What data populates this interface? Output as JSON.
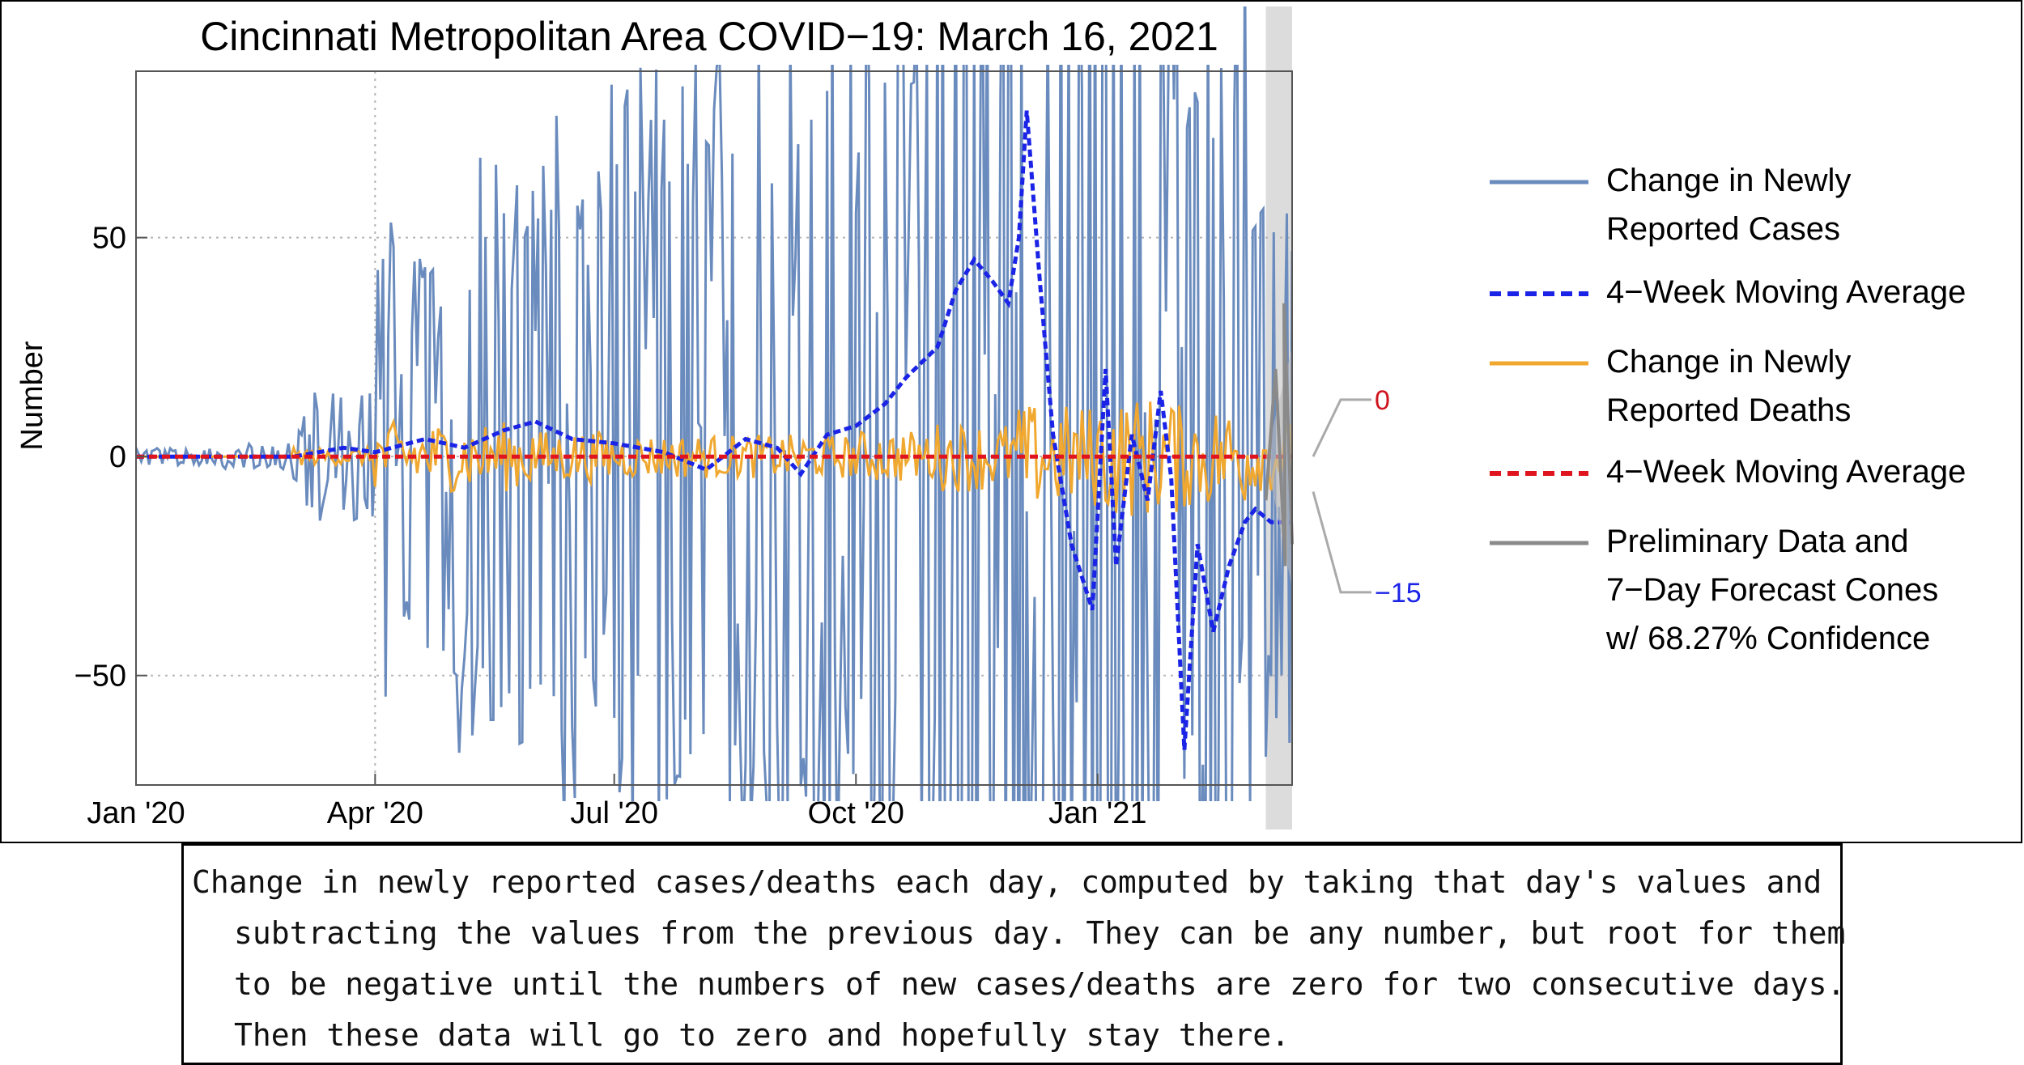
{
  "chart_data": {
    "type": "line",
    "title": "Cincinnati Metropolitan Area COVID−19: March 16, 2021",
    "ylabel": "Number",
    "xlabel": "",
    "ylim": [
      -75,
      88
    ],
    "grid": "dotted at y = 50, 0, −50 and x = Apr '20",
    "yticks": [
      {
        "value": 50,
        "label": "50"
      },
      {
        "value": 0,
        "label": "0"
      },
      {
        "value": -50,
        "label": "−50"
      }
    ],
    "xticks": [
      {
        "date": "2020-01-01",
        "label": "Jan '20"
      },
      {
        "date": "2020-04-01",
        "label": "Apr '20"
      },
      {
        "date": "2020-07-01",
        "label": "Jul '20"
      },
      {
        "date": "2020-10-01",
        "label": "Oct '20"
      },
      {
        "date": "2021-01-01",
        "label": "Jan '21"
      }
    ],
    "x_range": [
      "2020-01-01",
      "2021-03-16"
    ],
    "preliminary_start": "2021-03-06",
    "legend_position": "right",
    "series": [
      {
        "name": "Change in Newly Reported Cases",
        "color": "#6a8bbd",
        "style": "solid",
        "amplitude_by_month": [
          [
            "2020-01",
            2
          ],
          [
            "2020-02",
            3
          ],
          [
            "2020-03",
            15
          ],
          [
            "2020-04",
            55
          ],
          [
            "2020-05",
            70
          ],
          [
            "2020-06",
            85
          ],
          [
            "2020-07",
            90
          ],
          [
            "2020-08",
            100
          ],
          [
            "2020-09",
            110
          ],
          [
            "2020-10",
            120
          ],
          [
            "2020-11",
            150
          ],
          [
            "2020-12",
            160
          ],
          [
            "2021-01",
            150
          ],
          [
            "2021-02",
            120
          ],
          [
            "2021-03",
            70
          ]
        ]
      },
      {
        "name": "4−Week Moving Average",
        "color": "#1a23e6",
        "style": "dashed",
        "points": [
          [
            "2020-01-01",
            0
          ],
          [
            "2020-03-01",
            0
          ],
          [
            "2020-03-20",
            2
          ],
          [
            "2020-04-01",
            1
          ],
          [
            "2020-04-20",
            4
          ],
          [
            "2020-05-05",
            2
          ],
          [
            "2020-05-20",
            6
          ],
          [
            "2020-06-01",
            8
          ],
          [
            "2020-06-15",
            4
          ],
          [
            "2020-07-01",
            3
          ],
          [
            "2020-07-20",
            1
          ],
          [
            "2020-08-05",
            -3
          ],
          [
            "2020-08-20",
            4
          ],
          [
            "2020-09-01",
            2
          ],
          [
            "2020-09-10",
            -4
          ],
          [
            "2020-09-20",
            5
          ],
          [
            "2020-10-01",
            7
          ],
          [
            "2020-10-12",
            12
          ],
          [
            "2020-10-20",
            18
          ],
          [
            "2020-11-01",
            25
          ],
          [
            "2020-11-08",
            38
          ],
          [
            "2020-11-15",
            45
          ],
          [
            "2020-11-22",
            40
          ],
          [
            "2020-11-28",
            35
          ],
          [
            "2020-12-02",
            50
          ],
          [
            "2020-12-05",
            79
          ],
          [
            "2020-12-10",
            40
          ],
          [
            "2020-12-15",
            5
          ],
          [
            "2020-12-22",
            -20
          ],
          [
            "2020-12-30",
            -35
          ],
          [
            "2021-01-04",
            20
          ],
          [
            "2021-01-08",
            -25
          ],
          [
            "2021-01-14",
            5
          ],
          [
            "2021-01-20",
            -10
          ],
          [
            "2021-01-25",
            15
          ],
          [
            "2021-01-29",
            -5
          ],
          [
            "2021-02-03",
            -67
          ],
          [
            "2021-02-08",
            -20
          ],
          [
            "2021-02-14",
            -40
          ],
          [
            "2021-02-20",
            -25
          ],
          [
            "2021-02-26",
            -15
          ],
          [
            "2021-03-02",
            -12
          ],
          [
            "2021-03-08",
            -15
          ],
          [
            "2021-03-16",
            -15
          ]
        ]
      },
      {
        "name": "Change in Newly Reported Deaths",
        "color": "#f0a830",
        "style": "solid",
        "amplitude_by_month": [
          [
            "2020-01",
            0
          ],
          [
            "2020-02",
            0
          ],
          [
            "2020-03",
            2
          ],
          [
            "2020-04",
            8
          ],
          [
            "2020-05",
            8
          ],
          [
            "2020-06",
            6
          ],
          [
            "2020-07",
            5
          ],
          [
            "2020-08",
            5
          ],
          [
            "2020-09",
            5
          ],
          [
            "2020-10",
            6
          ],
          [
            "2020-11",
            8
          ],
          [
            "2020-12",
            12
          ],
          [
            "2021-01",
            14
          ],
          [
            "2021-02",
            12
          ],
          [
            "2021-03",
            8
          ]
        ]
      },
      {
        "name": "4−Week Moving Average",
        "color": "#e0141e",
        "style": "dashed",
        "points": [
          [
            "2020-01-01",
            0
          ],
          [
            "2020-12-15",
            0
          ],
          [
            "2021-03-16",
            0
          ]
        ]
      },
      {
        "name": "Preliminary Data and 7−Day Forecast Cones w/ 68.27% Confidence",
        "color": "#8a8a8a",
        "style": "solid"
      }
    ],
    "legend": [
      {
        "lines": [
          "Change in Newly",
          "Reported Cases"
        ],
        "color": "#6a8bbd",
        "style": "solid"
      },
      {
        "lines": [
          "4−Week Moving Average"
        ],
        "color": "#1a23e6",
        "style": "dashed"
      },
      {
        "lines": [
          "Change in Newly",
          "Reported Deaths"
        ],
        "color": "#f0a830",
        "style": "solid"
      },
      {
        "lines": [
          "4−Week Moving Average"
        ],
        "color": "#e0141e",
        "style": "dashed"
      },
      {
        "lines": [
          "Preliminary Data and",
          "7−Day Forecast Cones",
          "w/ 68.27% Confidence"
        ],
        "color": "#8a8a8a",
        "style": "solid"
      }
    ],
    "callouts": [
      {
        "value": 0,
        "label": "0",
        "color": "#d0141e"
      },
      {
        "value": -15,
        "label": "−15",
        "color": "#1a23e6"
      }
    ]
  },
  "caption": "Change in newly reported cases/deaths each day, computed by taking that day's values and subtracting the values from the previous day. They can be any number, but root for them to be negative until the numbers of new cases/deaths are zero for two consecutive days. Then these data will go to zero and hopefully stay there."
}
